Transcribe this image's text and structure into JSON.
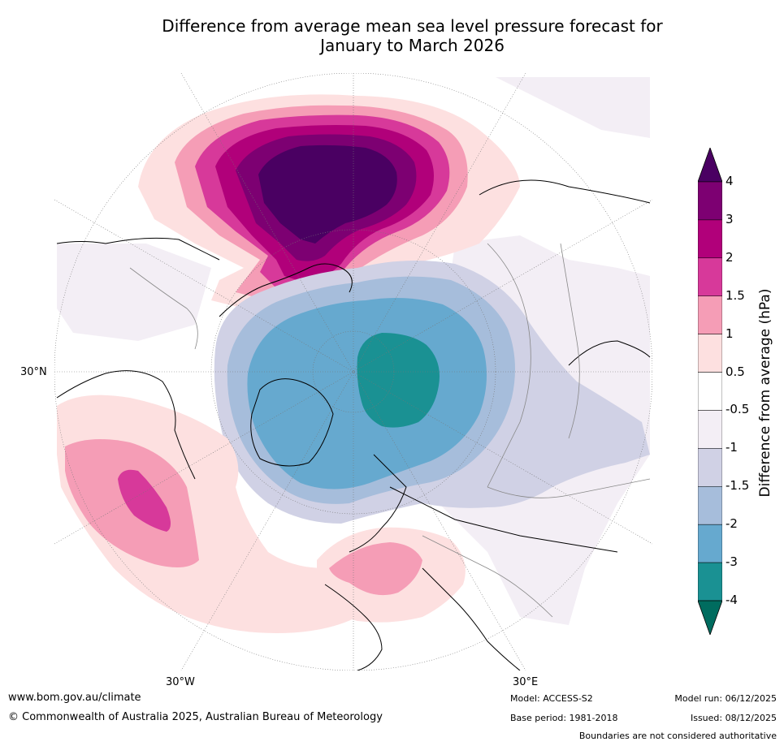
{
  "title_line1": "Difference from average mean sea level pressure forecast for",
  "title_line2": "January to March 2026",
  "map_labels": {
    "lat30n": "30°N",
    "lon30w": "30°W",
    "lon30e": "30°E"
  },
  "colorbar": {
    "title": "Difference from average (hPa)",
    "ticks": [
      "4",
      "3",
      "2",
      "1.5",
      "1",
      "0.5",
      "-0.5",
      "-1",
      "-1.5",
      "-2",
      "-3",
      "-4"
    ],
    "colors": [
      "#4a0062",
      "#7d0072",
      "#b1007a",
      "#d7399a",
      "#f59db6",
      "#fde0e0",
      "#ffffff",
      "#f3eef5",
      "#d0d1e5",
      "#a6bddb",
      "#66a9cf",
      "#1a9193",
      "#006c5f"
    ]
  },
  "footer": {
    "website": "www.bom.gov.au/climate",
    "copyright": "© Commonwealth of Australia 2025, Australian Bureau of Meteorology",
    "model": "Model: ACCESS-S2",
    "base_period": "Base period: 1981-2018",
    "model_run": "Model run: 06/12/2025",
    "issued": "Issued: 08/12/2025",
    "disclaimer": "Boundaries are not considered authoritative"
  }
}
